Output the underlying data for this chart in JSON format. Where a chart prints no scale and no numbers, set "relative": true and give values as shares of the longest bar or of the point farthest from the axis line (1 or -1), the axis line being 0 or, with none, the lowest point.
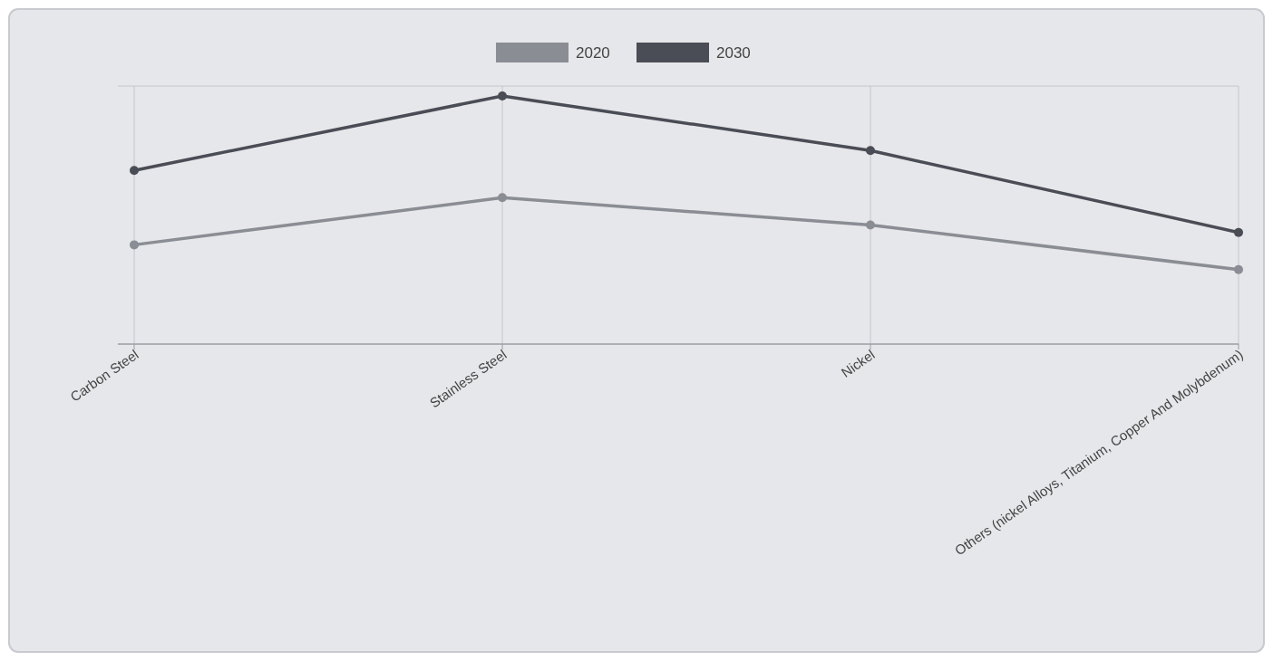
{
  "chart_data": {
    "type": "line",
    "relative": true,
    "categories": [
      "Carbon Steel",
      "Stainless Steel",
      "Nickel",
      "Others (nickel Alloys, Titanium, Copper And Molybdenum)"
    ],
    "series": [
      {
        "name": "2020",
        "color": "#8a8d94",
        "values": [
          0.4,
          0.59,
          0.48,
          0.3
        ]
      },
      {
        "name": "2030",
        "color": "#4a4d55",
        "values": [
          0.7,
          1,
          0.78,
          0.45
        ]
      }
    ],
    "legend": "top",
    "grid": "x",
    "marker": "circle",
    "line_style": "solid"
  }
}
